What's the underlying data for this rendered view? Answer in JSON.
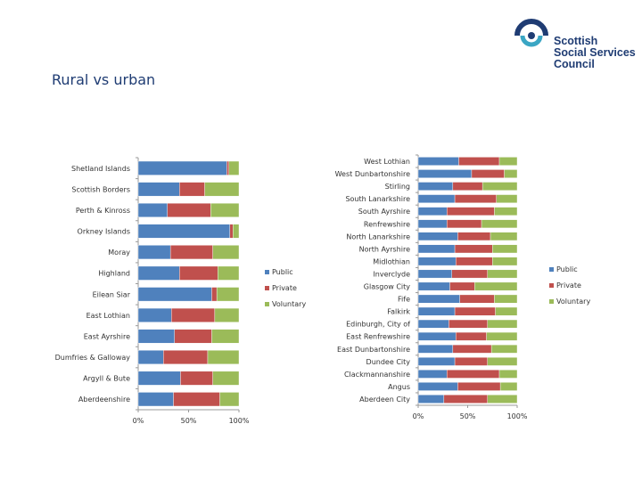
{
  "page": {
    "title": "Rural vs urban"
  },
  "logo": {
    "lines": [
      "Scottish",
      "Social Services",
      "Council"
    ],
    "colors": {
      "text": "#1f3c73",
      "mark_blue": "#1f3c73",
      "mark_teal": "#3aa6c4"
    }
  },
  "colors": {
    "public": "#4f81bd",
    "private": "#c0504d",
    "voluntary": "#9bbb59"
  },
  "chart_data": [
    {
      "type": "bar",
      "orientation": "horizontal",
      "stacked": "percent",
      "title": "",
      "xlabel": "",
      "ylabel": "",
      "xlim": [
        0,
        100
      ],
      "tick_labels": [
        "0%",
        "50%",
        "100%"
      ],
      "legend_position": "right",
      "categories": [
        "Shetland Islands",
        "Scottish Borders",
        "Perth & Kinross",
        "Orkney Islands",
        "Moray",
        "Highland",
        "Eilean Siar",
        "East Lothian",
        "East Ayrshire",
        "Dumfries & Galloway",
        "Argyll & Bute",
        "Aberdeenshire"
      ],
      "series": [
        {
          "name": "Public",
          "values": [
            88,
            41,
            29,
            91,
            32,
            41,
            73,
            33,
            36,
            25,
            42,
            35
          ]
        },
        {
          "name": "Private",
          "values": [
            2,
            25,
            43,
            3,
            42,
            38,
            5,
            43,
            37,
            44,
            32,
            46
          ]
        },
        {
          "name": "Voluntary",
          "values": [
            10,
            34,
            28,
            6,
            26,
            21,
            22,
            24,
            27,
            31,
            26,
            19
          ]
        }
      ]
    },
    {
      "type": "bar",
      "orientation": "horizontal",
      "stacked": "percent",
      "title": "",
      "xlabel": "",
      "ylabel": "",
      "xlim": [
        0,
        100
      ],
      "tick_labels": [
        "0%",
        "50%",
        "100%"
      ],
      "legend_position": "right",
      "categories": [
        "West Lothian",
        "West Dunbartonshire",
        "Stirling",
        "South Lanarkshire",
        "South Ayrshire",
        "Renfrewshire",
        "North Lanarkshire",
        "North Ayrshire",
        "Midlothian",
        "Inverclyde",
        "Glasgow City",
        "Fife",
        "Falkirk",
        "Edinburgh, City of",
        "East Renfrewshire",
        "East Dunbartonshire",
        "Dundee City",
        "Clackmannanshire",
        "Angus",
        "Aberdeen City"
      ],
      "series": [
        {
          "name": "Public",
          "values": [
            41,
            54,
            35,
            37,
            29,
            29,
            40,
            37,
            38,
            34,
            32,
            42,
            37,
            31,
            38,
            35,
            37,
            29,
            40,
            26
          ]
        },
        {
          "name": "Private",
          "values": [
            41,
            33,
            30,
            42,
            48,
            35,
            33,
            38,
            37,
            36,
            25,
            35,
            41,
            39,
            31,
            39,
            33,
            53,
            43,
            44
          ]
        },
        {
          "name": "Voluntary",
          "values": [
            18,
            13,
            35,
            21,
            23,
            36,
            27,
            25,
            25,
            30,
            43,
            23,
            22,
            30,
            31,
            26,
            30,
            18,
            17,
            30
          ]
        }
      ]
    }
  ]
}
